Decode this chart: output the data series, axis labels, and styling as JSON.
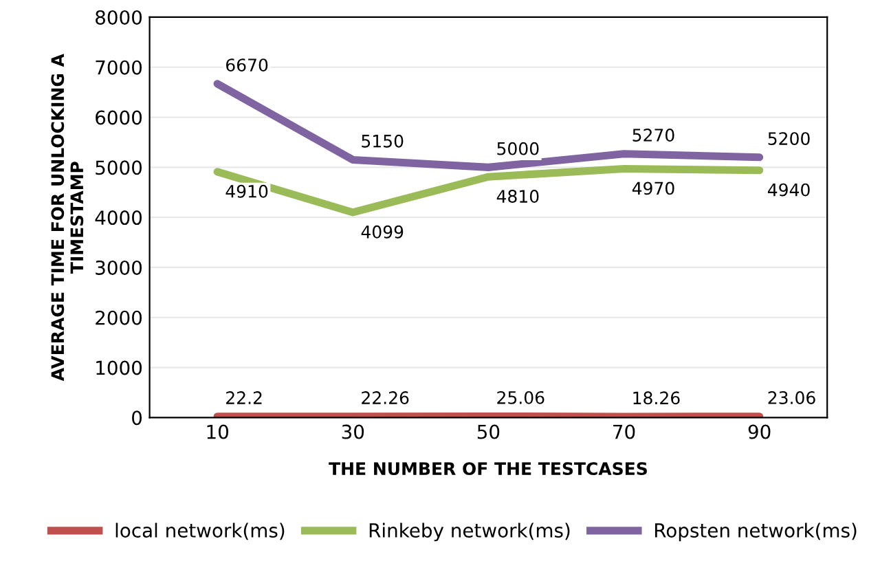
{
  "chart_data": {
    "type": "line",
    "xlabel": "THE NUMBER OF THE TESTCASES",
    "ylabel": "AVERAGE TIME FOR UNLOCKING A TIMESTAMP",
    "categories": [
      "10",
      "30",
      "50",
      "70",
      "90"
    ],
    "series": [
      {
        "name": "local network(ms)",
        "color": "#c0504d",
        "values": [
          22.2,
          22.26,
          25.06,
          18.26,
          23.06
        ]
      },
      {
        "name": "Rinkeby network(ms)",
        "color": "#9bbb59",
        "values": [
          4910,
          4099,
          4810,
          4970,
          4940
        ]
      },
      {
        "name": "Ropsten network(ms)",
        "color": "#8064a2",
        "values": [
          6670,
          5150,
          5000,
          5270,
          5200
        ]
      }
    ],
    "ylim": [
      0,
      8000
    ],
    "yticks": [
      0,
      1000,
      2000,
      3000,
      4000,
      5000,
      6000,
      7000,
      8000
    ],
    "grid": "y",
    "legend": "bottom",
    "data_labels": true,
    "marker": "none",
    "line_style": "solid"
  }
}
